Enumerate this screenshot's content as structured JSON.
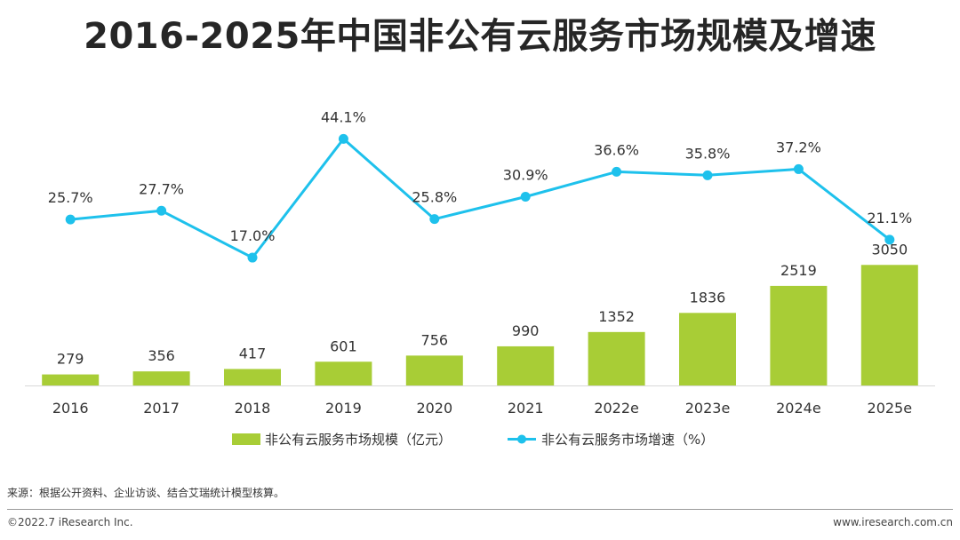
{
  "title": "2016-2025年中国非公有云服务市场规模及增速",
  "chart_data": {
    "type": "bar",
    "categories": [
      "2016",
      "2017",
      "2018",
      "2019",
      "2020",
      "2021",
      "2022e",
      "2023e",
      "2024e",
      "2025e"
    ],
    "series": [
      {
        "name": "非公有云服务市场规模（亿元）",
        "type": "bar",
        "color": "#a8cd36",
        "values": [
          279,
          356,
          417,
          601,
          756,
          990,
          1352,
          1836,
          2519,
          3050
        ],
        "labels": [
          "279",
          "356",
          "417",
          "601",
          "756",
          "990",
          "1352",
          "1836",
          "2519",
          "3050"
        ]
      },
      {
        "name": "非公有云服务市场增速（%）",
        "type": "line",
        "color": "#1ec1ec",
        "values": [
          25.7,
          27.7,
          17.0,
          44.1,
          25.8,
          30.9,
          36.6,
          35.8,
          37.2,
          21.1
        ],
        "labels": [
          "25.7%",
          "27.7%",
          "17.0%",
          "44.1%",
          "25.8%",
          "30.9%",
          "36.6%",
          "35.8%",
          "37.2%",
          "21.1%"
        ]
      }
    ],
    "legend_position": "bottom",
    "grid": false
  },
  "source": "来源：根据公开资料、企业访谈、结合艾瑞统计模型核算。",
  "footer": {
    "copyright": "©2022.7 iResearch Inc.",
    "website": "www.iresearch.com.cn"
  }
}
